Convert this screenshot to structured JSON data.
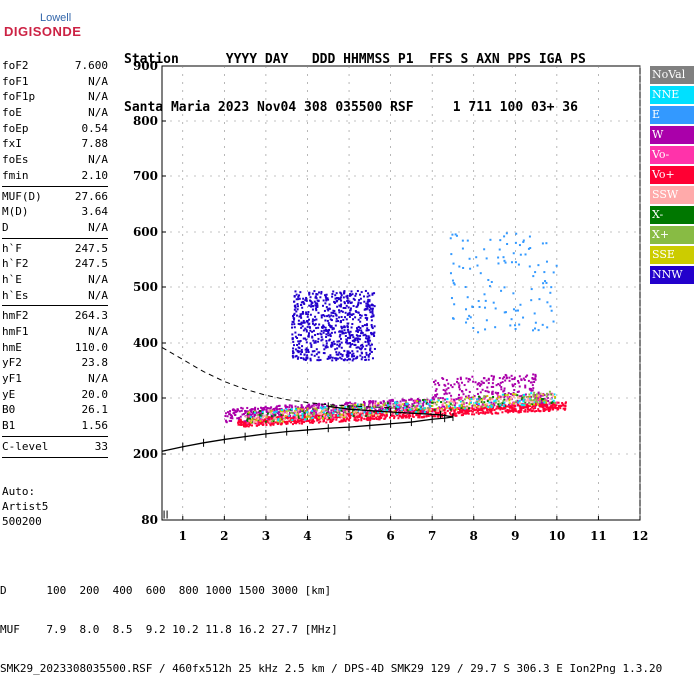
{
  "logo": {
    "top": "Lowell",
    "main": "DIGISONDE"
  },
  "header": {
    "line1": "Station      YYYY DAY   DDD HHMMSS P1  FFS S AXN PPS IGA PS",
    "line2": "Santa Maria 2023 Nov04 308 035500 RSF     1 711 100 03+ 36"
  },
  "params": [
    [
      {
        "label": "foF2",
        "value": "7.600"
      },
      {
        "label": "foF1",
        "value": "N/A"
      },
      {
        "label": "foF1p",
        "value": "N/A"
      },
      {
        "label": "foE",
        "value": "N/A"
      },
      {
        "label": "foEp",
        "value": "0.54"
      },
      {
        "label": "fxI",
        "value": "7.88"
      },
      {
        "label": "foEs",
        "value": "N/A"
      },
      {
        "label": "fmin",
        "value": "2.10"
      }
    ],
    [
      {
        "label": "MUF(D)",
        "value": "27.66"
      },
      {
        "label": "M(D)",
        "value": "3.64"
      },
      {
        "label": "D",
        "value": "N/A"
      }
    ],
    [
      {
        "label": "h`F",
        "value": "247.5"
      },
      {
        "label": "h`F2",
        "value": "247.5"
      },
      {
        "label": "h`E",
        "value": "N/A"
      },
      {
        "label": "h`Es",
        "value": "N/A"
      }
    ],
    [
      {
        "label": "hmF2",
        "value": "264.3"
      },
      {
        "label": "hmF1",
        "value": "N/A"
      },
      {
        "label": "hmE",
        "value": "110.0"
      },
      {
        "label": "yF2",
        "value": "23.8"
      },
      {
        "label": "yF1",
        "value": "N/A"
      },
      {
        "label": "yE",
        "value": "20.0"
      },
      {
        "label": "B0",
        "value": "26.1"
      },
      {
        "label": "B1",
        "value": "1.56"
      }
    ],
    [
      {
        "label": "C-level",
        "value": "33"
      }
    ]
  ],
  "auto": {
    "line1": "Auto:",
    "line2": "Artist5",
    "line3": "500200"
  },
  "legend": [
    {
      "label": "NoVal",
      "color": "#808080"
    },
    {
      "label": "NNE",
      "color": "#00e0ff"
    },
    {
      "label": "E",
      "color": "#3399ff"
    },
    {
      "label": "W",
      "color": "#aa00aa"
    },
    {
      "label": "Vo-",
      "color": "#ff33aa"
    },
    {
      "label": "Vo+",
      "color": "#ff0033"
    },
    {
      "label": "SSW",
      "color": "#ffaaaa"
    },
    {
      "label": "X-",
      "color": "#007700"
    },
    {
      "label": "X+",
      "color": "#88bb44"
    },
    {
      "label": "SSE",
      "color": "#cccc00"
    },
    {
      "label": "NNW",
      "color": "#2200cc"
    }
  ],
  "bottom": {
    "line1": "D      100  200  400  600  800 1000 1500 3000 [km]",
    "line2": "MUF    7.9  8.0  8.5  9.2 10.2 11.8 16.2 27.7 [MHz]",
    "line3": "SMK29_2023308035500.RSF / 460fx512h 25 kHz 2.5 km / DPS-4D SMK29 129 / 29.7 S 306.3 E Ion2Png 1.3.20"
  },
  "chart_data": {
    "type": "scatter",
    "xlim": [
      0.5,
      12
    ],
    "ylim": [
      80,
      900
    ],
    "x_ticks": [
      "1",
      "2",
      "3",
      "4",
      "5",
      "6",
      "7",
      "8",
      "9",
      "10",
      "11",
      "12"
    ],
    "y_ticks": [
      "80",
      "200",
      "300",
      "400",
      "500",
      "600",
      "700",
      "800",
      "900"
    ],
    "y_scale": "nonlinear",
    "profile": [
      [
        0.5,
        205
      ],
      [
        1,
        213
      ],
      [
        1.5,
        220
      ],
      [
        2,
        226
      ],
      [
        2.5,
        231
      ],
      [
        3,
        236
      ],
      [
        3.5,
        240
      ],
      [
        4,
        243
      ],
      [
        4.5,
        246
      ],
      [
        5,
        248
      ],
      [
        5.5,
        251
      ],
      [
        6,
        254
      ],
      [
        6.5,
        257
      ],
      [
        7,
        262
      ],
      [
        7.3,
        264
      ],
      [
        7.5,
        266
      ],
      [
        7.2,
        270
      ],
      [
        6,
        275
      ],
      [
        5,
        280
      ],
      [
        4.5,
        285
      ]
    ],
    "extrapolated_profile": [
      [
        0.5,
        392
      ],
      [
        1,
        370
      ],
      [
        1.5,
        348
      ],
      [
        2,
        330
      ],
      [
        2.5,
        316
      ],
      [
        3,
        305
      ],
      [
        3.5,
        297
      ],
      [
        4,
        292
      ],
      [
        4.5,
        288
      ],
      [
        5,
        286
      ],
      [
        5.5,
        284
      ],
      [
        6,
        283
      ]
    ],
    "clusters": [
      {
        "series": "NNW",
        "x": [
          3.6,
          5.6
        ],
        "y": [
          370,
          495
        ]
      },
      {
        "series": "W",
        "x": [
          2.0,
          9.8
        ],
        "y": [
          258,
          350
        ]
      },
      {
        "series": "Vo+",
        "x": [
          2.3,
          10.2
        ],
        "y": [
          250,
          300
        ]
      },
      {
        "series": "E",
        "x": [
          7.4,
          10.0
        ],
        "y": [
          420,
          600
        ]
      }
    ]
  }
}
